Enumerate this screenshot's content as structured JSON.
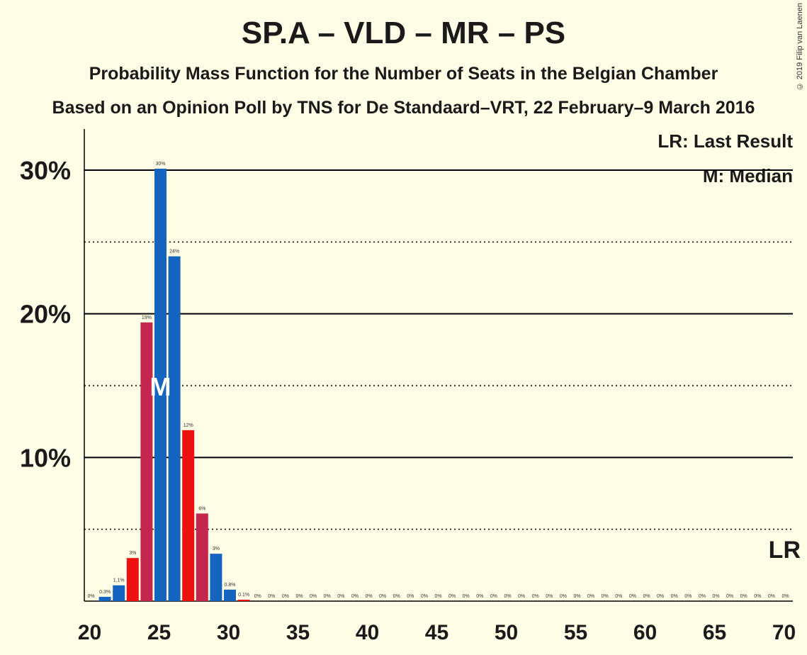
{
  "title": "SP.A – VLD – MR – PS",
  "subtitle": "Probability Mass Function for the Number of Seats in the Belgian Chamber",
  "subtitle2": "Based on an Opinion Poll by TNS for De Standaard–VRT, 22 February–9 March 2016",
  "copyright": "© 2019 Filip van Laenen",
  "legend": {
    "lr": "LR: Last Result",
    "median": "M: Median"
  },
  "chart_data": {
    "type": "bar",
    "xlim": [
      20,
      70
    ],
    "ylim": [
      0,
      32
    ],
    "x_ticks": [
      20,
      25,
      30,
      35,
      40,
      45,
      50,
      55,
      60,
      65,
      70
    ],
    "y_ticks": [
      {
        "value": 10,
        "label": "10%"
      },
      {
        "value": 20,
        "label": "20%"
      },
      {
        "value": 30,
        "label": "30%"
      }
    ],
    "dotted_gridlines": [
      5,
      15,
      25
    ],
    "bars": [
      {
        "x": 20,
        "value": 0,
        "label": "0%",
        "color": "#1565C0"
      },
      {
        "x": 21,
        "value": 0.3,
        "label": "0.3%",
        "color": "#1565C0"
      },
      {
        "x": 22,
        "value": 1.1,
        "label": "1.1%",
        "color": "#1565C0"
      },
      {
        "x": 23,
        "value": 3,
        "label": "3%",
        "color": "#EE1111"
      },
      {
        "x": 24,
        "value": 19.4,
        "label": "19%",
        "color": "#C4274E"
      },
      {
        "x": 25,
        "value": 30.1,
        "label": "30%",
        "color": "#1565C0"
      },
      {
        "x": 26,
        "value": 24,
        "label": "24%",
        "color": "#1565C0"
      },
      {
        "x": 27,
        "value": 11.9,
        "label": "12%",
        "color": "#EE1111"
      },
      {
        "x": 28,
        "value": 6.1,
        "label": "6%",
        "color": "#C4274E"
      },
      {
        "x": 29,
        "value": 3.3,
        "label": "3%",
        "color": "#1565C0"
      },
      {
        "x": 30,
        "value": 0.8,
        "label": "0.8%",
        "color": "#1565C0"
      },
      {
        "x": 31,
        "value": 0.1,
        "label": "0.1%",
        "color": "#EE1111"
      },
      {
        "x": 32,
        "value": 0,
        "label": "0%",
        "color": "#1565C0"
      },
      {
        "x": 33,
        "value": 0,
        "label": "0%",
        "color": "#1565C0"
      },
      {
        "x": 34,
        "value": 0,
        "label": "0%",
        "color": "#1565C0"
      },
      {
        "x": 35,
        "value": 0,
        "label": "0%",
        "color": "#1565C0"
      },
      {
        "x": 36,
        "value": 0,
        "label": "0%",
        "color": "#1565C0"
      },
      {
        "x": 37,
        "value": 0,
        "label": "0%",
        "color": "#1565C0"
      },
      {
        "x": 38,
        "value": 0,
        "label": "0%",
        "color": "#1565C0"
      },
      {
        "x": 39,
        "value": 0,
        "label": "0%",
        "color": "#1565C0"
      },
      {
        "x": 40,
        "value": 0,
        "label": "0%",
        "color": "#1565C0"
      },
      {
        "x": 41,
        "value": 0,
        "label": "0%",
        "color": "#1565C0"
      },
      {
        "x": 42,
        "value": 0,
        "label": "0%",
        "color": "#1565C0"
      },
      {
        "x": 43,
        "value": 0,
        "label": "0%",
        "color": "#1565C0"
      },
      {
        "x": 44,
        "value": 0,
        "label": "0%",
        "color": "#1565C0"
      },
      {
        "x": 45,
        "value": 0,
        "label": "0%",
        "color": "#1565C0"
      },
      {
        "x": 46,
        "value": 0,
        "label": "0%",
        "color": "#1565C0"
      },
      {
        "x": 47,
        "value": 0,
        "label": "0%",
        "color": "#1565C0"
      },
      {
        "x": 48,
        "value": 0,
        "label": "0%",
        "color": "#1565C0"
      },
      {
        "x": 49,
        "value": 0,
        "label": "0%",
        "color": "#1565C0"
      },
      {
        "x": 50,
        "value": 0,
        "label": "0%",
        "color": "#1565C0"
      },
      {
        "x": 51,
        "value": 0,
        "label": "0%",
        "color": "#1565C0"
      },
      {
        "x": 52,
        "value": 0,
        "label": "0%",
        "color": "#1565C0"
      },
      {
        "x": 53,
        "value": 0,
        "label": "0%",
        "color": "#1565C0"
      },
      {
        "x": 54,
        "value": 0,
        "label": "0%",
        "color": "#1565C0"
      },
      {
        "x": 55,
        "value": 0,
        "label": "0%",
        "color": "#1565C0"
      },
      {
        "x": 56,
        "value": 0,
        "label": "0%",
        "color": "#1565C0"
      },
      {
        "x": 57,
        "value": 0,
        "label": "0%",
        "color": "#1565C0"
      },
      {
        "x": 58,
        "value": 0,
        "label": "0%",
        "color": "#1565C0"
      },
      {
        "x": 59,
        "value": 0,
        "label": "0%",
        "color": "#1565C0"
      },
      {
        "x": 60,
        "value": 0,
        "label": "0%",
        "color": "#1565C0"
      },
      {
        "x": 61,
        "value": 0,
        "label": "0%",
        "color": "#1565C0"
      },
      {
        "x": 62,
        "value": 0,
        "label": "0%",
        "color": "#1565C0"
      },
      {
        "x": 63,
        "value": 0,
        "label": "0%",
        "color": "#1565C0"
      },
      {
        "x": 64,
        "value": 0,
        "label": "0%",
        "color": "#1565C0"
      },
      {
        "x": 65,
        "value": 0,
        "label": "0%",
        "color": "#1565C0"
      },
      {
        "x": 66,
        "value": 0,
        "label": "0%",
        "color": "#1565C0"
      },
      {
        "x": 67,
        "value": 0,
        "label": "0%",
        "color": "#1565C0"
      },
      {
        "x": 68,
        "value": 0,
        "label": "0%",
        "color": "#1565C0"
      },
      {
        "x": 69,
        "value": 0,
        "label": "0%",
        "color": "#1565C0"
      },
      {
        "x": 70,
        "value": 0,
        "label": "0%",
        "color": "#1565C0"
      }
    ],
    "median": {
      "x": 25,
      "label": "M"
    },
    "last_result": {
      "x": 70,
      "label": "LR"
    }
  }
}
